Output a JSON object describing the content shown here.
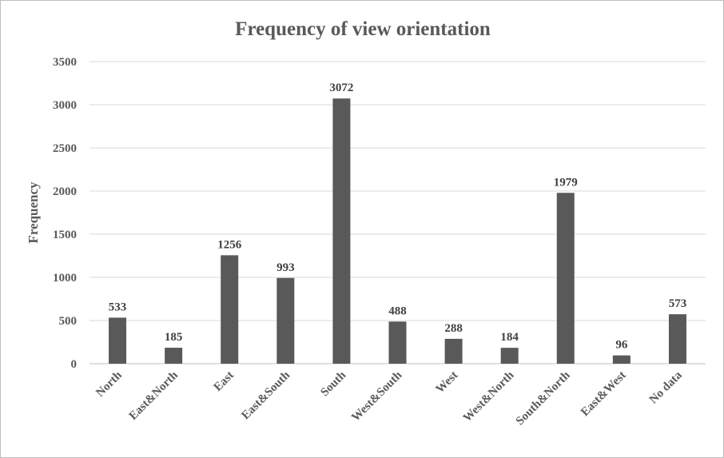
{
  "chart_data": {
    "type": "bar",
    "title": "Frequency of view orientation",
    "xlabel": "",
    "ylabel": "Frequency",
    "ylim": [
      0,
      3500
    ],
    "yticks": [
      0,
      500,
      1000,
      1500,
      2000,
      2500,
      3000,
      3500
    ],
    "grid": true,
    "categories": [
      "North",
      "East&North",
      "East",
      "East&South",
      "South",
      "West&South",
      "West",
      "West&North",
      "South&North",
      "East&West",
      "No data"
    ],
    "values": [
      533,
      185,
      1256,
      993,
      3072,
      488,
      288,
      184,
      1979,
      96,
      573
    ],
    "bar_color": "#595959"
  }
}
